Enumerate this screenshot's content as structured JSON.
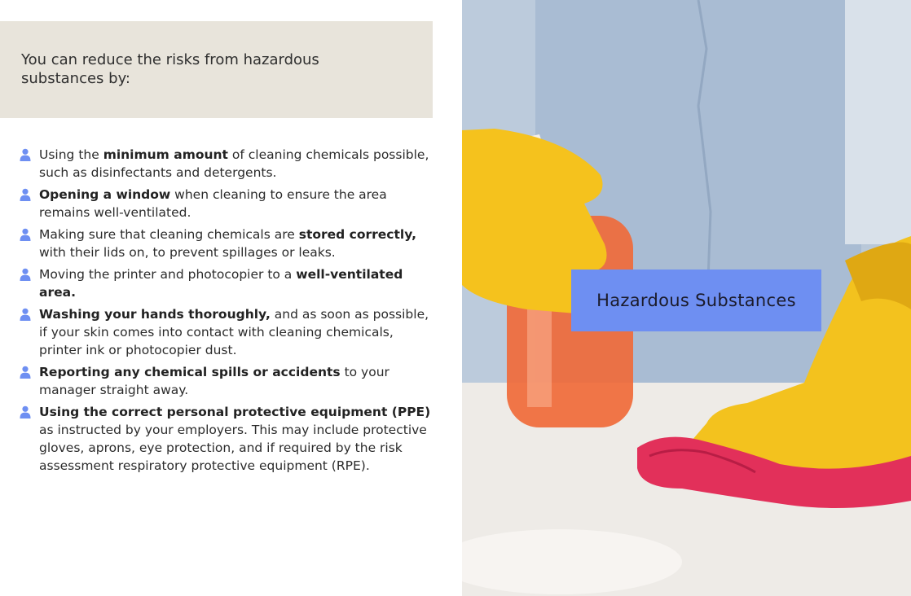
{
  "intro": {
    "text": "You can reduce the risks from hazardous substances by:"
  },
  "items": [
    {
      "pre": "Using the ",
      "bold": "minimum amount",
      "post": " of cleaning chemicals possible, such as disinfectants and detergents."
    },
    {
      "pre": "",
      "bold": "Opening a window",
      "post": " when cleaning to ensure the area remains well-ventilated."
    },
    {
      "pre": "Making sure that cleaning chemicals are ",
      "bold": "stored correctly,",
      "post": " with their lids on, to prevent spillages or leaks."
    },
    {
      "pre": "Moving the printer and photocopier to a ",
      "bold": "well-ventilated area.",
      "post": ""
    },
    {
      "pre": "",
      "bold": "Washing your hands thoroughly,",
      "post": " and as soon as possible, if your skin comes into contact with cleaning chemicals, printer ink or photocopier dust."
    },
    {
      "pre": "",
      "bold": "Reporting any chemical spills or accidents",
      "post": " to your manager straight away."
    },
    {
      "pre": "",
      "bold": "Using the correct personal protective equipment (PPE)",
      "post": " as instructed by your employers. This may include protective gloves, aprons, eye protection, and if required by the risk assessment respiratory protective equipment (RPE)."
    }
  ],
  "bullet_icon": "person-icon",
  "image": {
    "caption": "Hazardous Substances"
  },
  "colors": {
    "intro_bg": "#e8e4db",
    "bullet": "#6e8ff2",
    "caption_bg": "#6e8ff2"
  }
}
